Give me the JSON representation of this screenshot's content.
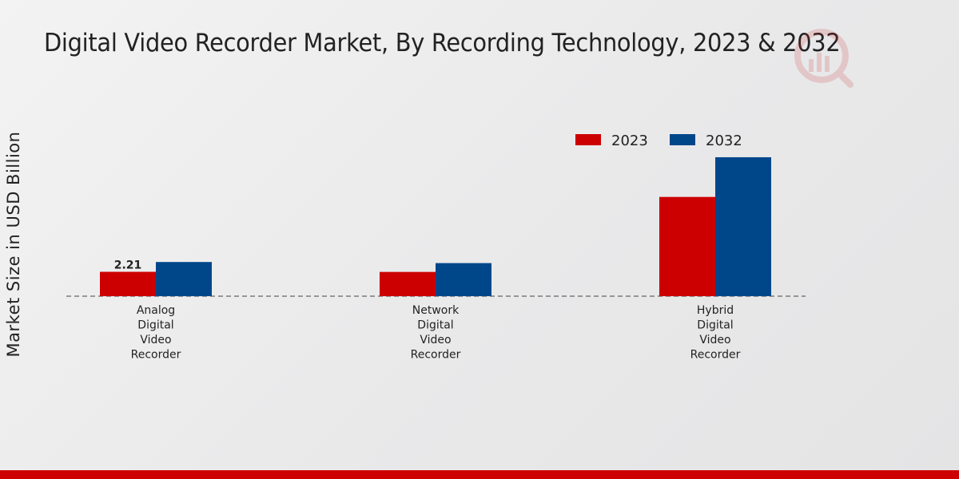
{
  "title": "Digital Video Recorder Market, By Recording Technology, 2023 & 2032",
  "chart_data": {
    "type": "bar",
    "title": "Digital Video Recorder Market, By Recording Technology, 2023 & 2032",
    "xlabel": "",
    "ylabel": "Market Size in USD Billion",
    "categories": [
      [
        "Analog",
        "Digital",
        "Video",
        "Recorder"
      ],
      [
        "Network",
        "Digital",
        "Video",
        "Recorder"
      ],
      [
        "Hybrid",
        "Digital",
        "Video",
        "Recorder"
      ]
    ],
    "series": [
      {
        "name": "2023",
        "color": "#cc0000",
        "values": [
          2.21,
          2.2,
          9.0
        ]
      },
      {
        "name": "2032",
        "color": "#00478a",
        "values": [
          3.1,
          3.0,
          12.6
        ]
      }
    ],
    "data_labels": [
      {
        "series": 0,
        "category": 0,
        "text": "2.21"
      }
    ],
    "ylim": [
      0,
      16
    ],
    "legend_position": "top-right",
    "grid": false,
    "baseline_style": "dashed"
  },
  "colors": {
    "accent_bar": "#cc0000",
    "watermark": "#cc3333"
  },
  "icons": {
    "watermark": "logo-watermark-icon"
  }
}
